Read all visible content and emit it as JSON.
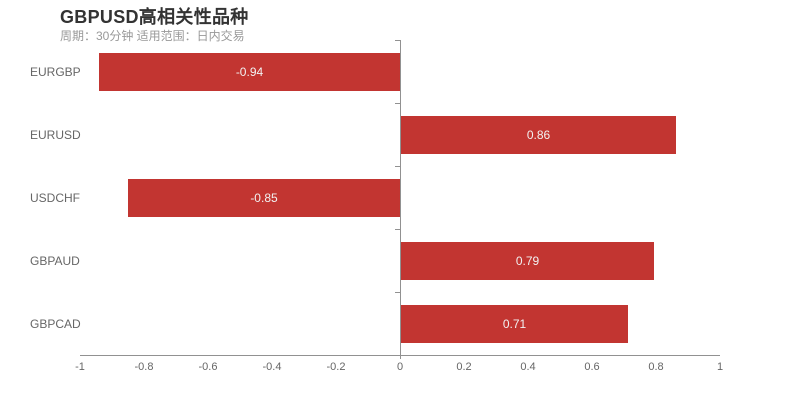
{
  "chart_data": {
    "type": "bar",
    "orientation": "horizontal",
    "title": "GBPUSD高相关性品种",
    "subtitle": "周期：30分钟 适用范围：日内交易",
    "categories": [
      "EURGBP",
      "EURUSD",
      "USDCHF",
      "GBPAUD",
      "GBPCAD"
    ],
    "values": [
      -0.94,
      0.86,
      -0.85,
      0.79,
      0.71
    ],
    "value_labels": [
      "-0.94",
      "0.86",
      "-0.85",
      "0.79",
      "0.71"
    ],
    "xlim": [
      -1,
      1
    ],
    "x_tick_values": [
      -1,
      -0.8,
      -0.6,
      -0.4,
      -0.2,
      0,
      0.2,
      0.4,
      0.6,
      0.8,
      1
    ],
    "x_tick_labels": [
      "-1",
      "-0.8",
      "-0.6",
      "-0.4",
      "-0.2",
      "0",
      "0.2",
      "0.4",
      "0.6",
      "0.8",
      "1"
    ],
    "grid": false,
    "legend": false,
    "value_label_position": "inside-center",
    "colors": {
      "bar": "#c23531",
      "value_label": "#f2f2f2",
      "axis_line": "#919191",
      "axis_label": "#666666",
      "title": "#333333",
      "subtitle": "#999999",
      "background": "#ffffff"
    }
  }
}
